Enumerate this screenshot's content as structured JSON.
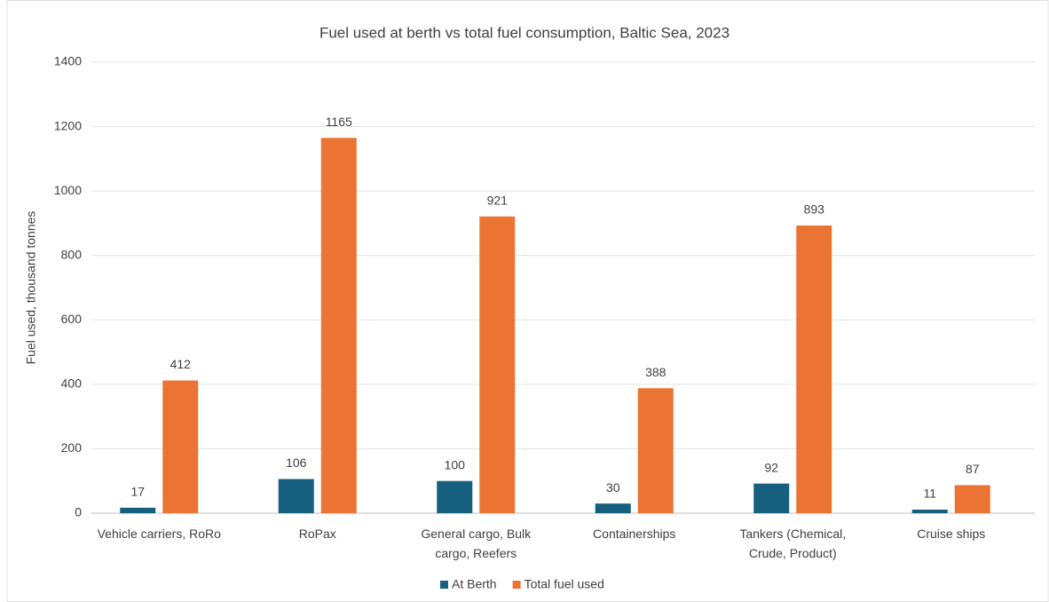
{
  "chart_data": {
    "type": "bar",
    "title": "Fuel used at berth vs total fuel consumption, Baltic Sea, 2023",
    "y_label": "Fuel used, thousand tonnes",
    "categories": [
      "Vehicle carriers, RoRo",
      "RoPax",
      "General cargo, Bulk cargo, Reefers",
      "Containerships",
      "Tankers (Chemical, Crude, Product)",
      "Cruise ships"
    ],
    "series": [
      {
        "name": "At Berth",
        "color": "#175f7e",
        "values": [
          17,
          106,
          100,
          30,
          92,
          11
        ]
      },
      {
        "name": "Total fuel used",
        "color": "#eb7434",
        "values": [
          412,
          1165,
          921,
          388,
          893,
          87
        ]
      }
    ],
    "ylim": [
      0,
      1400
    ],
    "yticks": [
      0,
      200,
      400,
      600,
      800,
      1000,
      1200,
      1400
    ],
    "grid": true,
    "legend": "bottom"
  }
}
